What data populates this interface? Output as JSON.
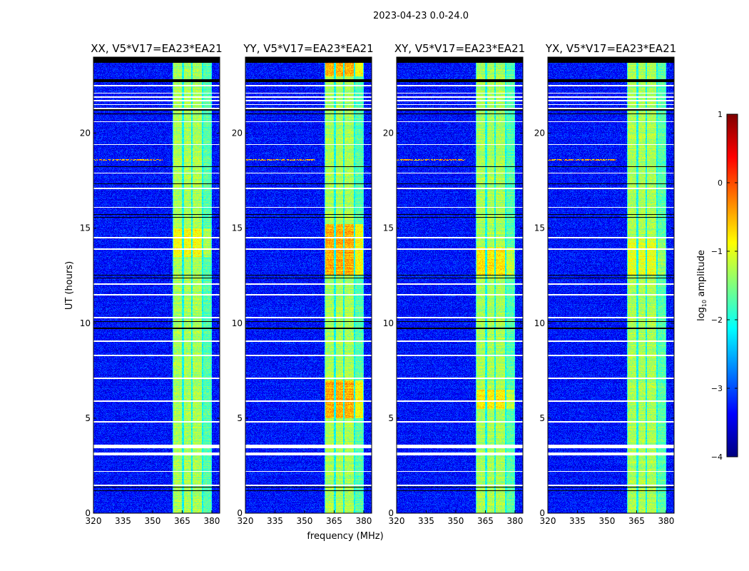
{
  "chart_data": {
    "type": "heatmap",
    "title": "2023-04-23 0.0-24.0",
    "xlabel": "frequency (MHz)",
    "ylabel": "UT (hours)",
    "xlim": [
      320,
      384
    ],
    "ylim": [
      0,
      24
    ],
    "xticks": [
      320,
      335,
      350,
      365,
      380
    ],
    "yticks": [
      0,
      5,
      10,
      15,
      20
    ],
    "colormap": "jet",
    "colorbar": {
      "label": "log10 amplitude",
      "label_main": "log",
      "label_sub": "10",
      "label_rest": " amplitude",
      "range": [
        -4,
        1
      ],
      "ticks": [
        1,
        0,
        -1,
        -2,
        -3,
        -4
      ],
      "tick_labels": [
        "1",
        "0",
        "−1",
        "−2",
        "−3",
        "−4"
      ]
    },
    "background_level": -3.3,
    "bright_channels_mhz": [
      [
        360.5,
        365
      ],
      [
        365.8,
        369.5
      ],
      [
        370.2,
        375
      ],
      [
        375.8,
        379.7
      ]
    ],
    "bright_level": -1.3,
    "gap_level": -2.1,
    "flagged_white_hours": [
      1.46,
      2.2,
      3.15,
      3.5,
      4.8,
      5.9,
      7.1,
      8.3,
      9.05,
      10.3,
      11.5,
      12.05,
      13.9,
      14.5,
      16.1,
      17.1,
      17.9,
      19.4,
      20.6,
      21.3,
      21.5,
      21.7,
      21.9,
      22.1,
      22.5
    ],
    "flagged_black_hours": [
      [
        23.7,
        24.0
      ],
      [
        22.7,
        22.85
      ],
      [
        21.0,
        21.05
      ],
      [
        21.2,
        21.25
      ],
      [
        15.55,
        15.6
      ],
      [
        15.7,
        15.75
      ],
      [
        12.35,
        12.4
      ],
      [
        12.5,
        12.55
      ],
      [
        10.05,
        10.1
      ],
      [
        9.7,
        9.75
      ],
      [
        1.15,
        1.2
      ],
      [
        1.35,
        1.4
      ],
      [
        18.2,
        18.25
      ],
      [
        17.3,
        17.35
      ]
    ],
    "rfi_line_hours": [
      18.6
    ],
    "panels": [
      {
        "title": "XX, V5*V17=EA23*EA21",
        "hot_intervals": [
          [
            13.5,
            15.0
          ]
        ],
        "hot_level": -0.9
      },
      {
        "title": "YY, V5*V17=EA23*EA21",
        "hot_intervals": [
          [
            12.5,
            15.2
          ],
          [
            5.0,
            7.0
          ],
          [
            23.0,
            23.7
          ]
        ],
        "hot_level": -0.5
      },
      {
        "title": "XY, V5*V17=EA23*EA21",
        "hot_intervals": [
          [
            12.5,
            14.0
          ],
          [
            5.5,
            6.5
          ]
        ],
        "hot_level": -0.8
      },
      {
        "title": "YX, V5*V17=EA23*EA21",
        "hot_intervals": [
          [
            12.5,
            14.5
          ]
        ],
        "hot_level": -1.0
      }
    ]
  }
}
